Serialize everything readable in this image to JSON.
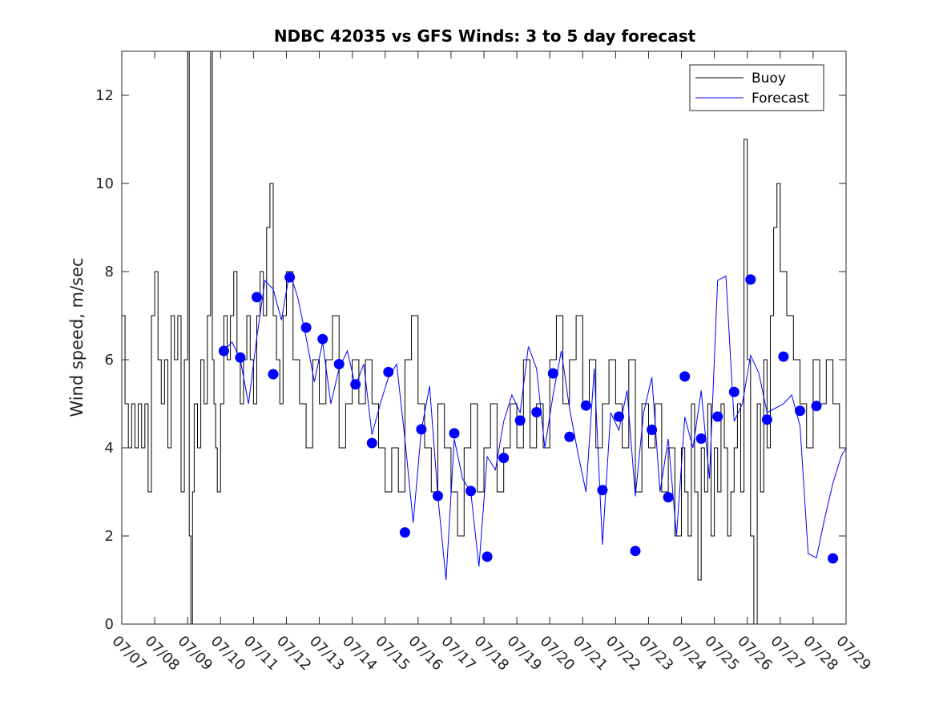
{
  "chart_data": {
    "type": "line",
    "title": "NDBC 42035 vs GFS Winds: 3 to 5 day forecast",
    "xlabel": "",
    "ylabel": "Wind speed, m/sec",
    "xlim": [
      0,
      22
    ],
    "ylim": [
      0,
      13
    ],
    "x_tick_labels": [
      "07/07",
      "07/08",
      "07/09",
      "07/10",
      "07/11",
      "07/12",
      "07/13",
      "07/14",
      "07/15",
      "07/16",
      "07/17",
      "07/18",
      "07/19",
      "07/20",
      "07/21",
      "07/22",
      "07/23",
      "07/24",
      "07/25",
      "07/26",
      "07/27",
      "07/28",
      "07/29"
    ],
    "y_ticks": [
      0,
      2,
      4,
      6,
      8,
      10,
      12
    ],
    "x_tick_label_rotation_deg": 45,
    "grid": false,
    "legend": {
      "position": "top-right",
      "entries": [
        "Buoy",
        "Forecast"
      ]
    },
    "colors": {
      "buoy": "#000000",
      "forecast": "#0000ff",
      "markers": "#0000ff"
    },
    "series": [
      {
        "name": "Buoy",
        "style": "step",
        "x_unit": "days after 07/07 00:00",
        "x": [
          0,
          0.1,
          0.2,
          0.3,
          0.4,
          0.5,
          0.6,
          0.7,
          0.8,
          0.9,
          1,
          1.1,
          1.2,
          1.3,
          1.4,
          1.5,
          1.6,
          1.7,
          1.8,
          1.9,
          2,
          2.05,
          2.1,
          2.15,
          2.2,
          2.3,
          2.4,
          2.5,
          2.6,
          2.7,
          2.75,
          2.8,
          2.85,
          2.9,
          3,
          3.1,
          3.2,
          3.3,
          3.4,
          3.5,
          3.6,
          3.7,
          3.8,
          3.9,
          4,
          4.1,
          4.2,
          4.3,
          4.4,
          4.5,
          4.6,
          4.7,
          4.8,
          4.9,
          5,
          5.2,
          5.4,
          5.6,
          5.8,
          6,
          6.2,
          6.4,
          6.6,
          6.8,
          7,
          7.2,
          7.4,
          7.6,
          7.8,
          8,
          8.2,
          8.4,
          8.6,
          8.8,
          9,
          9.2,
          9.4,
          9.6,
          9.8,
          10,
          10.2,
          10.4,
          10.6,
          10.8,
          11,
          11.2,
          11.4,
          11.6,
          11.8,
          12,
          12.2,
          12.4,
          12.6,
          12.8,
          13,
          13.2,
          13.4,
          13.6,
          13.8,
          14,
          14.2,
          14.4,
          14.6,
          14.8,
          15,
          15.2,
          15.4,
          15.6,
          15.8,
          16,
          16.2,
          16.4,
          16.6,
          16.8,
          17,
          17.1,
          17.2,
          17.3,
          17.4,
          17.5,
          17.6,
          17.7,
          17.8,
          17.9,
          18,
          18.1,
          18.2,
          18.3,
          18.4,
          18.5,
          18.6,
          18.7,
          18.8,
          18.9,
          19,
          19.1,
          19.2,
          19.3,
          19.4,
          19.5,
          19.6,
          19.7,
          19.8,
          19.9,
          20,
          20.2,
          20.4,
          20.6,
          20.8,
          21,
          21.2,
          21.4,
          21.6,
          21.8,
          22
        ],
        "y": [
          7,
          5,
          4,
          5,
          4,
          5,
          4,
          5,
          3,
          7,
          8,
          6,
          5,
          6,
          4,
          7,
          6,
          7,
          3,
          6,
          13,
          2,
          0,
          3,
          5,
          4,
          6,
          5,
          7,
          13,
          6,
          5,
          4,
          3,
          5,
          7,
          6,
          7,
          8,
          6,
          5,
          6,
          7,
          6,
          5,
          7,
          8,
          7,
          9,
          10,
          7,
          6,
          5,
          7,
          8,
          6,
          5,
          4,
          6,
          5,
          6,
          7,
          4,
          5,
          6,
          5,
          6,
          5,
          4,
          3,
          4,
          3,
          6,
          7,
          5,
          4,
          3,
          5,
          4,
          3,
          2,
          4,
          5,
          3,
          4,
          5,
          3,
          4,
          5,
          4,
          6,
          4,
          5,
          4,
          6,
          7,
          5,
          6,
          7,
          5,
          6,
          4,
          5,
          6,
          5,
          4,
          6,
          3,
          5,
          4,
          5,
          3,
          4,
          2,
          4,
          3,
          2,
          5,
          3,
          1,
          4,
          3,
          5,
          2,
          4,
          3,
          5,
          4,
          2,
          3,
          4,
          5,
          3,
          11,
          6,
          2,
          0,
          5,
          3,
          6,
          4,
          7,
          9,
          10,
          8,
          7,
          6,
          5,
          4,
          6,
          5,
          6,
          5,
          4,
          3
        ]
      },
      {
        "name": "Forecast",
        "style": "line",
        "x_unit": "days after 07/07 00:00",
        "x": [
          3.1,
          3.35,
          3.6,
          3.85,
          4.1,
          4.35,
          4.6,
          4.85,
          5.1,
          5.35,
          5.6,
          5.85,
          6.1,
          6.35,
          6.6,
          6.85,
          7.1,
          7.35,
          7.6,
          7.85,
          8.1,
          8.35,
          8.6,
          8.85,
          9.1,
          9.35,
          9.6,
          9.85,
          10.1,
          10.35,
          10.6,
          10.85,
          11.1,
          11.35,
          11.6,
          11.85,
          12.1,
          12.35,
          12.6,
          12.85,
          13.1,
          13.35,
          13.6,
          13.85,
          14.1,
          14.35,
          14.6,
          14.85,
          15.1,
          15.35,
          15.6,
          15.85,
          16.1,
          16.35,
          16.6,
          16.85,
          17.1,
          17.35,
          17.6,
          17.85,
          18.1,
          18.35,
          18.6,
          18.85,
          19.1,
          19.35,
          19.6,
          19.85,
          20.1,
          20.35,
          20.6,
          20.85,
          21.1,
          21.35,
          21.6,
          21.85,
          22
        ],
        "y": [
          6.2,
          6.4,
          6.0,
          5.0,
          6.5,
          7.8,
          7.6,
          6.9,
          8.0,
          7.4,
          6.5,
          5.5,
          6.4,
          5.0,
          5.8,
          6.2,
          5.4,
          5.9,
          4.3,
          5.0,
          5.6,
          5.9,
          4.2,
          2.3,
          4.4,
          5.4,
          2.9,
          1.0,
          4.2,
          3.3,
          3.0,
          1.3,
          3.8,
          3.5,
          4.6,
          5.2,
          4.8,
          6.3,
          5.8,
          4.0,
          5.2,
          6.2,
          4.9,
          3.9,
          3.0,
          5.8,
          1.8,
          4.8,
          4.4,
          5.3,
          2.9,
          4.8,
          5.6,
          3.0,
          4.2,
          2.0,
          4.7,
          4.0,
          5.3,
          3.3,
          7.8,
          7.9,
          4.6,
          5.0,
          6.1,
          5.7,
          4.8,
          4.9,
          5.0,
          5.2,
          4.5,
          1.6,
          1.5,
          2.4,
          3.2,
          3.8,
          4.0
        ]
      },
      {
        "name": "Forecast",
        "style": "markers",
        "x_unit": "days after 07/07 00:00",
        "x": [
          3.1,
          3.6,
          4.1,
          4.6,
          5.1,
          5.6,
          6.1,
          6.6,
          7.1,
          7.6,
          8.1,
          8.6,
          9.1,
          9.6,
          10.1,
          10.6,
          11.1,
          11.6,
          12.1,
          12.6,
          13.1,
          13.6,
          14.1,
          14.6,
          15.1,
          15.6,
          16.1,
          16.6,
          17.1,
          17.6,
          18.1,
          18.6,
          19.1,
          19.6,
          20.1,
          20.6,
          21.1,
          21.6
        ],
        "y": [
          6.2,
          6.05,
          7.42,
          5.67,
          7.87,
          6.73,
          6.47,
          5.9,
          5.44,
          4.11,
          5.72,
          2.08,
          4.42,
          2.91,
          4.33,
          3.02,
          1.53,
          3.77,
          4.62,
          4.81,
          5.69,
          4.25,
          4.96,
          3.04,
          4.71,
          1.66,
          4.41,
          2.88,
          5.62,
          4.21,
          4.71,
          5.27,
          7.82,
          4.64,
          6.07,
          4.84,
          4.95,
          1.49
        ]
      }
    ]
  }
}
